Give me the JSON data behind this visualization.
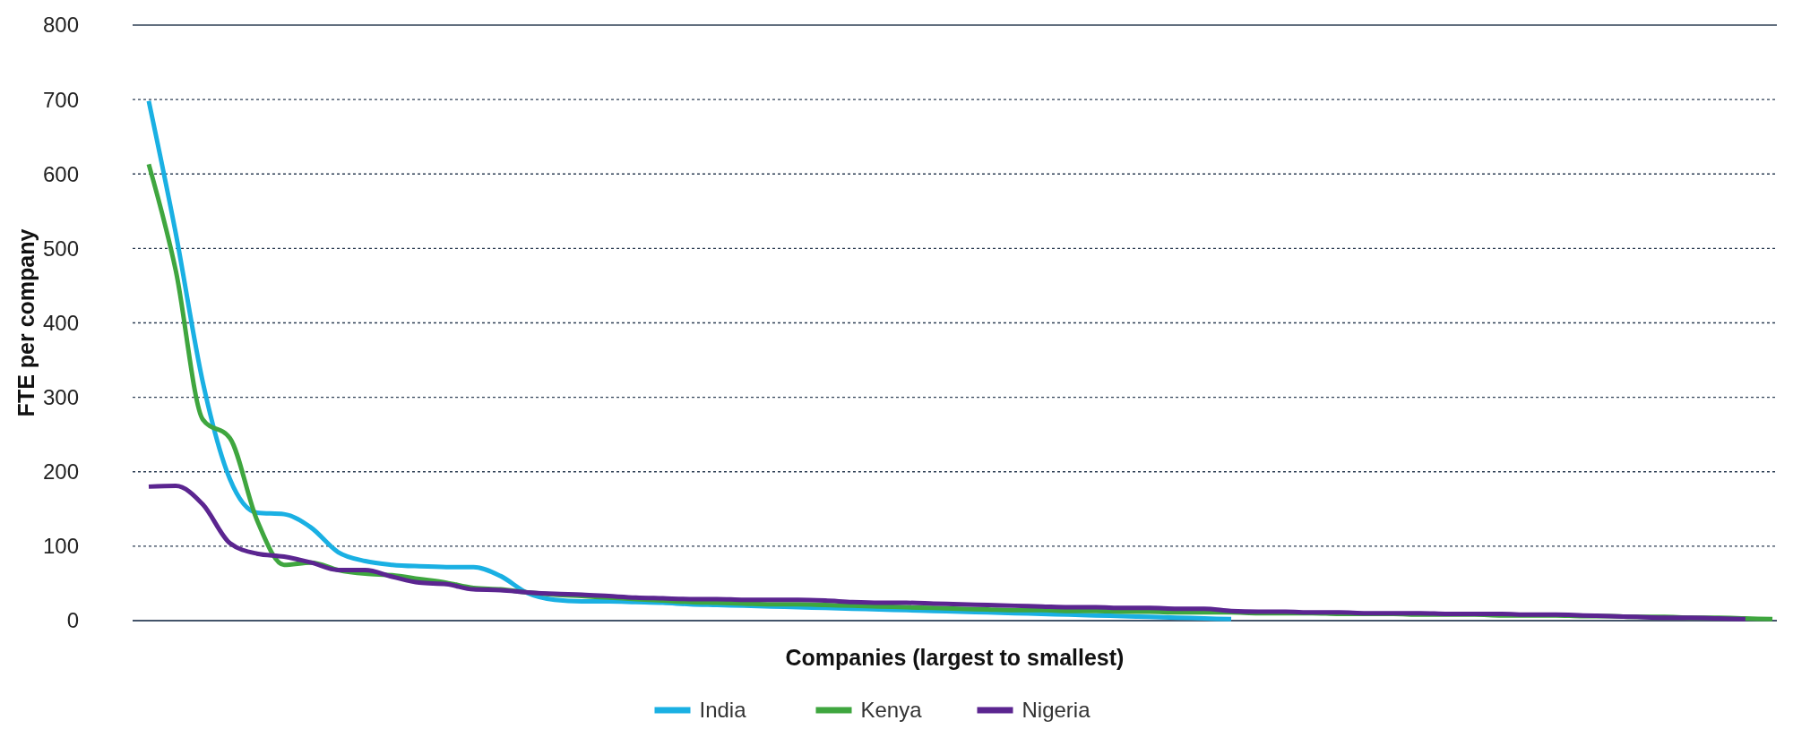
{
  "chart_data": {
    "type": "line",
    "xlabel": "Companies (largest to smallest)",
    "ylabel": "FTE per company",
    "categories": [
      null,
      null,
      null,
      null,
      null,
      null,
      null,
      null,
      null,
      null,
      null,
      null,
      null,
      null,
      null,
      null,
      null,
      null,
      null,
      null,
      null,
      null,
      null,
      null,
      null,
      null,
      null,
      null,
      null,
      null,
      null,
      null,
      null,
      null,
      null,
      null,
      null,
      null,
      null,
      null,
      null,
      null,
      null,
      null,
      null,
      null,
      null,
      null,
      null,
      null,
      null,
      null,
      null,
      null,
      null,
      null,
      null,
      null,
      null,
      null,
      null
    ],
    "series": [
      {
        "name": "India",
        "color": "#1ab0e3",
        "values": [
          698,
          520,
          320,
          190,
          145,
          143,
          125,
          92,
          80,
          75,
          73,
          72,
          72,
          60,
          37,
          28,
          26,
          26,
          25,
          24,
          22,
          21,
          20,
          19,
          18,
          17,
          16,
          15,
          14,
          13,
          12,
          11,
          10,
          9,
          8,
          7,
          6,
          5,
          4,
          3,
          2,
          null,
          null,
          null,
          null,
          null,
          null,
          null,
          null,
          null,
          null,
          null,
          null,
          null,
          null,
          null,
          null,
          null,
          null,
          null,
          null
        ]
      },
      {
        "name": "Kenya",
        "color": "#3fa63f",
        "values": [
          613,
          470,
          270,
          245,
          135,
          75,
          78,
          68,
          63,
          61,
          56,
          51,
          44,
          42,
          38,
          35,
          33,
          31,
          29,
          27,
          25,
          24,
          23,
          22,
          22,
          21,
          20,
          19,
          18,
          17,
          16,
          15,
          14,
          14,
          13,
          13,
          12,
          12,
          11,
          11,
          11,
          10,
          10,
          10,
          9,
          9,
          9,
          8,
          8,
          8,
          7,
          7,
          7,
          6,
          6,
          5,
          5,
          4,
          4,
          3,
          2
        ]
      },
      {
        "name": "Nigeria",
        "color": "#5b2590",
        "values": [
          180,
          181,
          156,
          104,
          90,
          86,
          78,
          68,
          68,
          59,
          51,
          49,
          42,
          41,
          38,
          36,
          35,
          33,
          31,
          30,
          29,
          29,
          28,
          28,
          28,
          27,
          25,
          24,
          24,
          23,
          22,
          21,
          20,
          19,
          18,
          18,
          17,
          17,
          16,
          16,
          13,
          12,
          12,
          11,
          11,
          10,
          10,
          10,
          9,
          9,
          9,
          8,
          8,
          7,
          6,
          5,
          4,
          4,
          3,
          2,
          null
        ]
      }
    ],
    "ylim": [
      0,
      800
    ],
    "yticks": [
      0,
      100,
      200,
      300,
      400,
      500,
      600,
      700,
      800
    ],
    "grid": "y",
    "legend": "bottom",
    "line_style": "solid",
    "marker": "none"
  }
}
